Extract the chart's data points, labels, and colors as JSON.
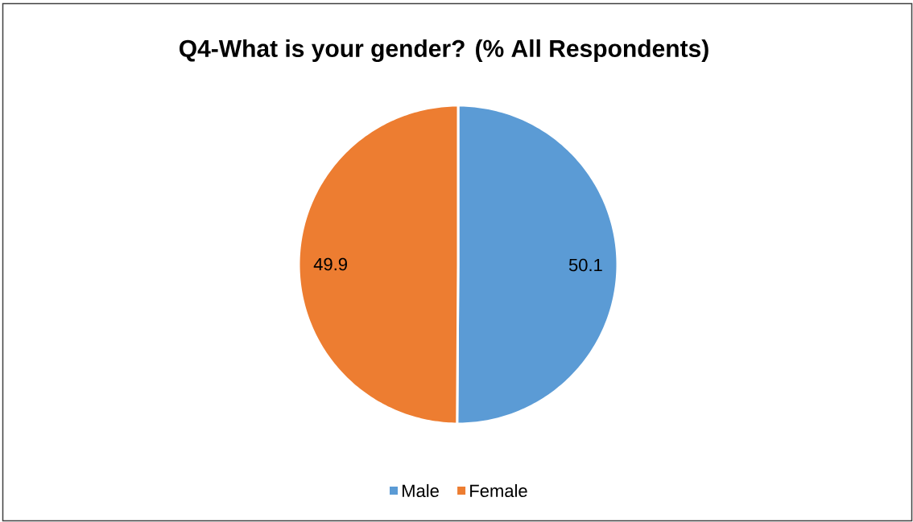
{
  "chart_data": {
    "type": "pie",
    "title": "Q4-What is your gender? (% All Respondents)",
    "categories": [
      "Male",
      "Female"
    ],
    "values": [
      50.1,
      49.9
    ],
    "colors": [
      "#5b9bd5",
      "#ed7d31"
    ],
    "data_labels": true,
    "legend": "bottom"
  }
}
